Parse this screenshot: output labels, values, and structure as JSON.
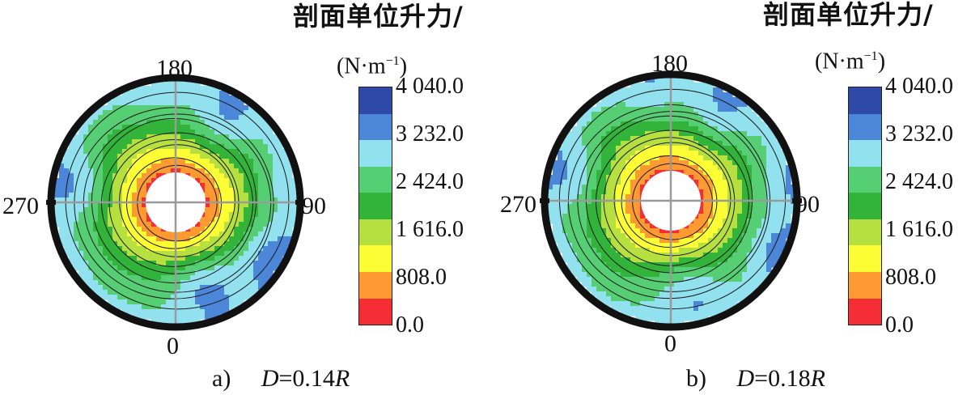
{
  "chart_data": [
    {
      "type": "heatmap",
      "panel_label": "a)",
      "param_name": "D",
      "param_value": "=0.14",
      "param_unit": "R",
      "angle_labels": {
        "top": "180",
        "right": "90",
        "bottom": "0",
        "left": "270"
      },
      "colorbar": {
        "title": "剖面单位升力/",
        "unit_text": "(N·m",
        "unit_exp": "−1",
        "unit_close": ")",
        "ticks": [
          "4 040.0",
          "3 232.0",
          "2 424.0",
          "1 616.0",
          "808.0",
          "0.0"
        ],
        "range": [
          0,
          4040
        ],
        "colors": [
          "#2f49a8",
          "#4c86d8",
          "#92e1ee",
          "#56cf74",
          "#32b33a",
          "#b6e040",
          "#fdfd35",
          "#fe9a31",
          "#f42e34"
        ]
      },
      "blobs": [
        {
          "angle": 150,
          "dist": 0.75,
          "value": 3700
        },
        {
          "angle": 190,
          "dist": 0.83,
          "value": 3200
        },
        {
          "angle": 260,
          "dist": 0.78,
          "value": 3600
        },
        {
          "angle": 300,
          "dist": 0.8,
          "value": 3000
        },
        {
          "angle": 60,
          "dist": 0.85,
          "value": 3650
        },
        {
          "angle": 100,
          "dist": 0.88,
          "value": 3200
        },
        {
          "angle": 20,
          "dist": 0.7,
          "value": 3900
        },
        {
          "angle": 340,
          "dist": 0.65,
          "value": 3100
        }
      ]
    },
    {
      "type": "heatmap",
      "panel_label": "b)",
      "param_name": "D",
      "param_value": "=0.18",
      "param_unit": "R",
      "angle_labels": {
        "top": "180",
        "right": "90",
        "bottom": "0",
        "left": "270"
      },
      "colorbar": {
        "title": "剖面单位升力/",
        "unit_text": "(N·m",
        "unit_exp": "−1",
        "unit_close": ")",
        "ticks": [
          "4 040.0",
          "3 232.0",
          "2 424.0",
          "1 616.0",
          "808.0",
          "0.0"
        ],
        "range": [
          0,
          4040
        ],
        "colors": [
          "#2f49a8",
          "#4c86d8",
          "#92e1ee",
          "#56cf74",
          "#32b33a",
          "#b6e040",
          "#fdfd35",
          "#fe9a31",
          "#f42e34"
        ]
      },
      "blobs": [
        {
          "angle": 150,
          "dist": 0.78,
          "value": 3600
        },
        {
          "angle": 190,
          "dist": 0.84,
          "value": 3300
        },
        {
          "angle": 255,
          "dist": 0.8,
          "value": 3550
        },
        {
          "angle": 300,
          "dist": 0.82,
          "value": 3000
        },
        {
          "angle": 65,
          "dist": 0.86,
          "value": 3500
        },
        {
          "angle": 100,
          "dist": 0.88,
          "value": 3300
        },
        {
          "angle": 15,
          "dist": 0.72,
          "value": 3700
        },
        {
          "angle": 345,
          "dist": 0.67,
          "value": 3100
        }
      ]
    }
  ]
}
